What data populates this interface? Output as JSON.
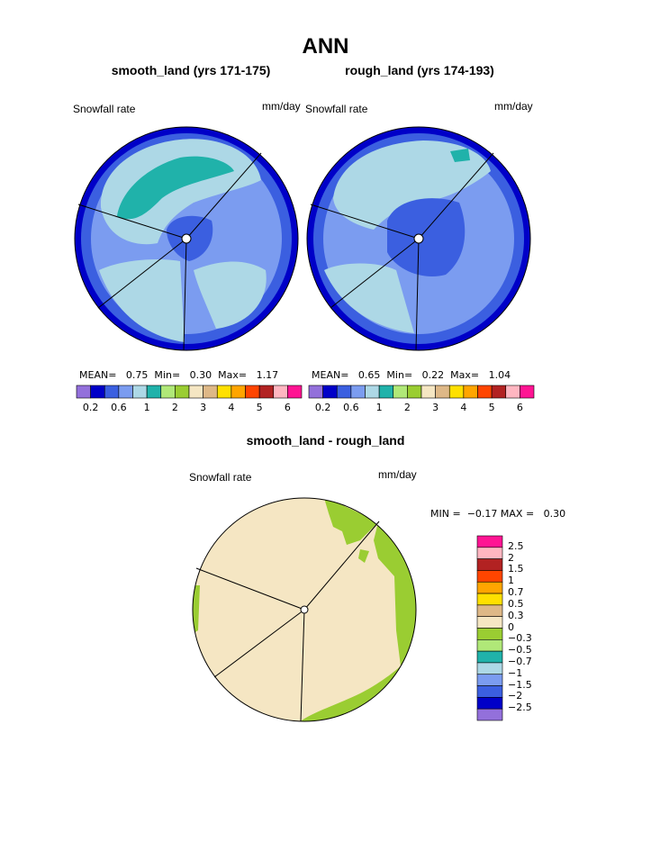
{
  "page": {
    "title": "ANN",
    "diff_title": "smooth_land - rough_land"
  },
  "panels": [
    {
      "title": "smooth_land (yrs 171-175)",
      "left_label": "Snowfall rate",
      "right_label": "mm/day",
      "mean_label": "MEAN=",
      "mean": "0.75",
      "min_label": "Min=",
      "min": "0.30",
      "max_label": "Max=",
      "max": "1.17"
    },
    {
      "title": "rough_land (yrs 174-193)",
      "left_label": "Snowfall rate",
      "right_label": "mm/day",
      "mean_label": "MEAN=",
      "mean": "0.65",
      "min_label": "Min=",
      "min": "0.22",
      "max_label": "Max=",
      "max": "1.04"
    }
  ],
  "colorbar_horizontal": {
    "colors": [
      "#9370DB",
      "#0000C8",
      "#3B5FE0",
      "#7B9CF0",
      "#ADD8E6",
      "#20B2AA",
      "#B0E878",
      "#9ACD32",
      "#F5E6C3",
      "#DEB887",
      "#FFE000",
      "#FFA500",
      "#FF4500",
      "#B22222",
      "#FFB6C1",
      "#FF1493"
    ],
    "labels": [
      "0.2",
      "0.6",
      "1",
      "2",
      "3",
      "4",
      "5",
      "6"
    ]
  },
  "diff_panel": {
    "left_label": "Snowfall rate",
    "right_label": "mm/day",
    "min_label": "MIN =",
    "min": "−0.17",
    "max_label": "MAX =",
    "max": "0.30"
  },
  "colorbar_vertical": {
    "colors_top_to_bottom": [
      "#FF1493",
      "#FFB6C1",
      "#B22222",
      "#FF4500",
      "#FFA500",
      "#FFE000",
      "#DEB887",
      "#F5E6C3",
      "#9ACD32",
      "#B0E878",
      "#20B2AA",
      "#ADD8E6",
      "#7B9CF0",
      "#3B5FE0",
      "#0000C8",
      "#9370DB"
    ],
    "labels_top_to_bottom": [
      "2.5",
      "2",
      "1.5",
      "1",
      "0.7",
      "0.5",
      "0.3",
      "0",
      "−0.3",
      "−0.5",
      "−0.7",
      "−1",
      "−1.5",
      "−2",
      "−2.5"
    ]
  },
  "field_colors": {
    "level_0.4": "#0000C8",
    "level_0.6": "#3B5FE0",
    "level_0.8": "#7B9CF0",
    "level_1": "#ADD8E6",
    "level_1.5": "#20B2AA",
    "diff_zero": "#F5E6C3",
    "diff_neg": "#9ACD32"
  }
}
